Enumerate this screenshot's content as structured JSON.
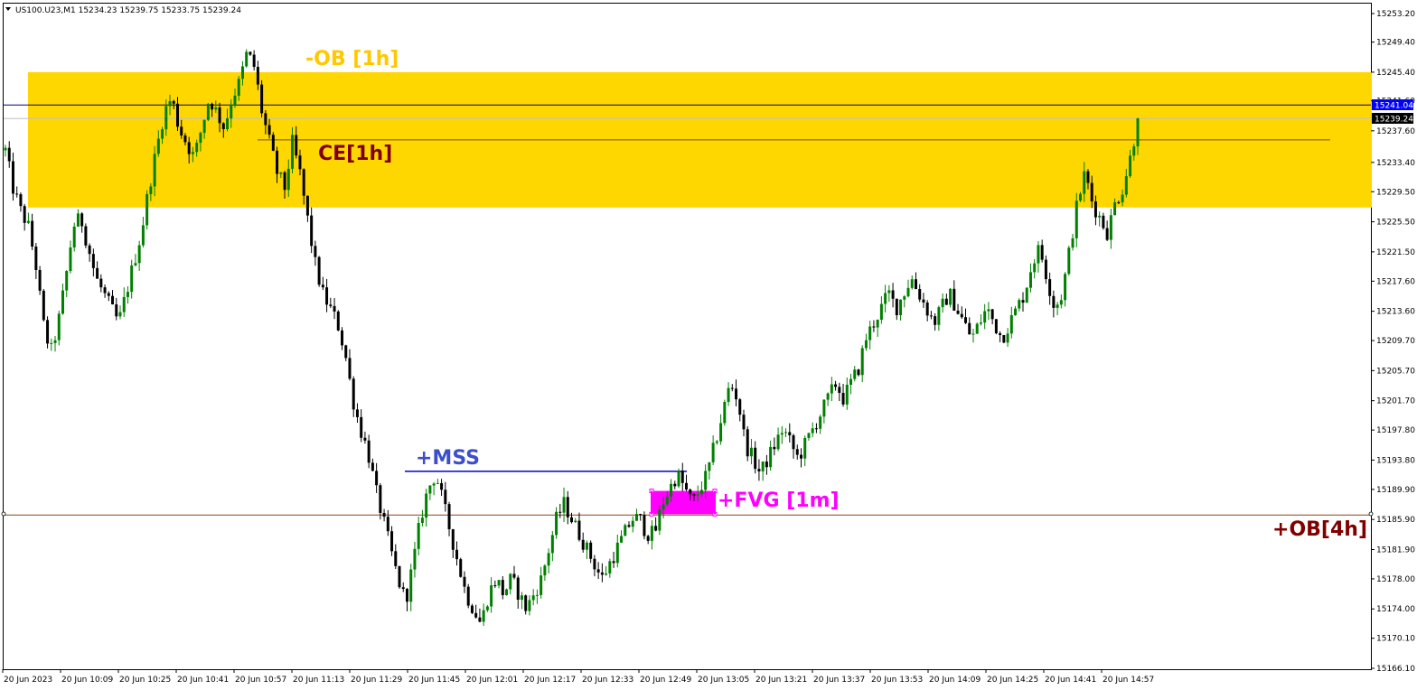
{
  "symbol_header": "US100.U23,M1  15234.23 15239.75 15233.75 15239.24",
  "colors": {
    "up_candle": "#008000",
    "down_candle": "#000000",
    "ob_zone": "#FFD700",
    "ob_label": "#FFC800",
    "ce_line": "#7A4A1A",
    "ce_label": "#800000",
    "mss_line": "#0000CC",
    "mss_label": "#3D4FC8",
    "fvg_fill": "#FF00FF",
    "ob4h_line": "#8B4513",
    "ob4h_label": "#800000",
    "bid_line": "#000080",
    "bid_tag": "#0000FF",
    "last_tag": "#000000"
  },
  "labels": {
    "ob_1h": "-OB [1h]",
    "ce_1h": "CE[1h]",
    "mss": "+MSS",
    "fvg_1m": "+FVG [1m]",
    "ob_4h": "+OB[4h]"
  },
  "price_tags": {
    "bid": "15241.04",
    "last": "15239.24"
  },
  "chart_data": {
    "type": "candlestick",
    "symbol": "US100.U23",
    "timeframe": "M1",
    "ohlc_header": {
      "open": 15234.23,
      "high": 15239.75,
      "low": 15233.75,
      "close": 15239.24
    },
    "y_ticks": [
      "15253.20",
      "15249.40",
      "15245.40",
      "15241.60",
      "15237.60",
      "15233.40",
      "15229.50",
      "15225.50",
      "15221.50",
      "15217.60",
      "15213.60",
      "15209.70",
      "15205.70",
      "15201.70",
      "15197.80",
      "15193.80",
      "15189.90",
      "15185.90",
      "15181.90",
      "15178.00",
      "15174.00",
      "15170.10",
      "15166.10"
    ],
    "x_ticks": [
      "20 Jun 2023",
      "20 Jun 10:09",
      "20 Jun 10:25",
      "20 Jun 10:41",
      "20 Jun 10:57",
      "20 Jun 11:13",
      "20 Jun 11:29",
      "20 Jun 11:45",
      "20 Jun 12:01",
      "20 Jun 12:17",
      "20 Jun 12:33",
      "20 Jun 12:49",
      "20 Jun 13:05",
      "20 Jun 13:21",
      "20 Jun 13:37",
      "20 Jun 13:53",
      "20 Jun 14:09",
      "20 Jun 14:25",
      "20 Jun 14:41",
      "20 Jun 14:57"
    ],
    "ylim": [
      15165.0,
      15254.6
    ],
    "zones": {
      "ob_1h": {
        "top": 15245.4,
        "bottom": 15227.4
      },
      "ce_1h": 15236.4,
      "mss": 15192.3,
      "fvg_1m": {
        "top": 15189.7,
        "bottom": 15186.6
      },
      "ob_4h": 15186.5,
      "bid": 15241.04,
      "last": 15239.24
    },
    "path_points": [
      15235,
      15230,
      15227,
      15225,
      15220,
      15212,
      15208,
      15212,
      15218,
      15225,
      15226,
      15222,
      15218,
      15216,
      15214,
      15212,
      15216,
      15220,
      15224,
      15230,
      15235,
      15240,
      15242,
      15238,
      15236,
      15234,
      15238,
      15242,
      15240,
      15238,
      15242,
      15244,
      15248,
      15246,
      15240,
      15236,
      15232,
      15230,
      15236,
      15232,
      15226,
      15220,
      15216,
      15214,
      15212,
      15208,
      15202,
      15198,
      15195,
      15190,
      15186,
      15182,
      15178,
      15175,
      15180,
      15186,
      15190,
      15192,
      15188,
      15184,
      15180,
      15176,
      15174,
      15172,
      15176,
      15178,
      15176,
      15178,
      15176,
      15174,
      15176,
      15178,
      15182,
      15186,
      15188,
      15186,
      15184,
      15182,
      15180,
      15178,
      15180,
      15182,
      15184,
      15186,
      15186,
      15184,
      15184,
      15188,
      15190,
      15192,
      15190,
      15188,
      15190,
      15192,
      15196,
      15200,
      15204,
      15202,
      15196,
      15194,
      15192,
      15194,
      15196,
      15198,
      15196,
      15194,
      15196,
      15198,
      15200,
      15202,
      15204,
      15202,
      15204,
      15206,
      15210,
      15212,
      15214,
      15216,
      15214,
      15216,
      15218,
      15216,
      15214,
      15212,
      15214,
      15216,
      15214,
      15212,
      15210,
      15212,
      15214,
      15212,
      15210,
      15212,
      15214,
      15216,
      15220,
      15222,
      15218,
      15214,
      15216,
      15222,
      15228,
      15232,
      15228,
      15226,
      15224,
      15228,
      15230,
      15234,
      15239
    ]
  }
}
